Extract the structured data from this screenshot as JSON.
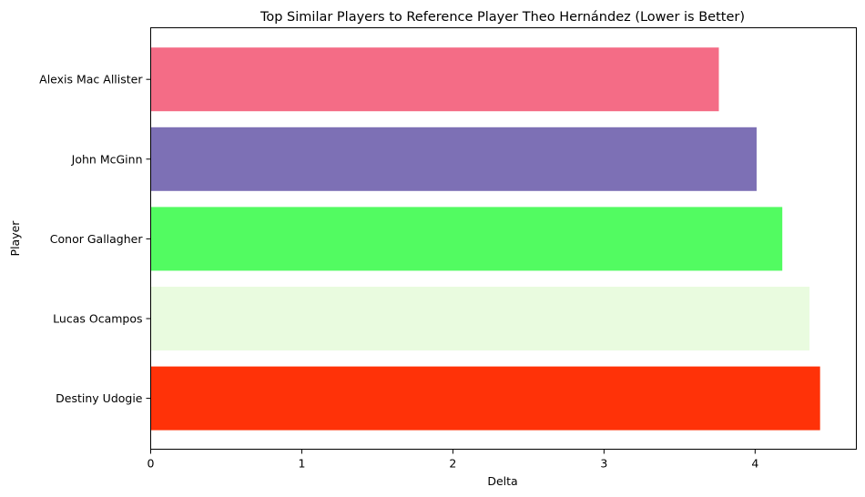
{
  "chart_data": {
    "type": "bar",
    "orientation": "horizontal",
    "title": "Top Similar Players to Reference Player Theo Hernández (Lower is Better)",
    "xlabel": "Delta",
    "ylabel": "Player",
    "categories": [
      "Alexis Mac Allister",
      "John McGinn",
      "Conor Gallagher",
      "Lucas Ocampos",
      "Destiny Udogie"
    ],
    "values": [
      3.76,
      4.01,
      4.18,
      4.36,
      4.43
    ],
    "colors": [
      "#f46c86",
      "#7d70b5",
      "#52fb61",
      "#e9fbdf",
      "#ff3208"
    ],
    "xlim": [
      0,
      4.67
    ],
    "xticks": [
      0,
      1,
      2,
      3,
      4
    ],
    "grid": false,
    "legend": null
  }
}
